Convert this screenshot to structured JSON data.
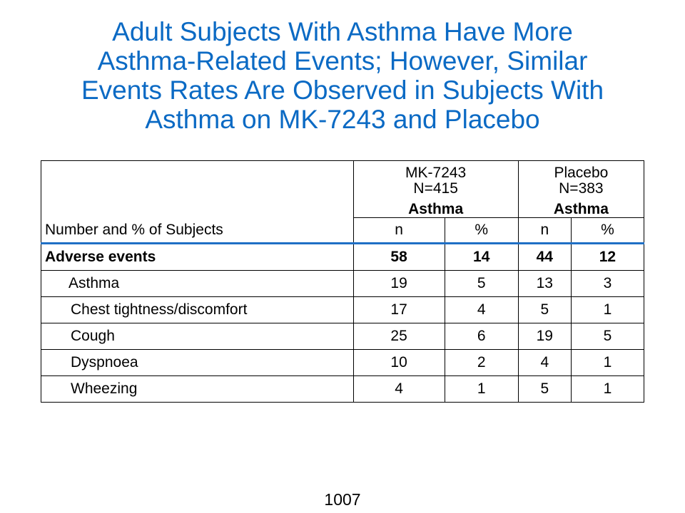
{
  "title_lines": [
    "Adult Subjects With Asthma Have More",
    "Asthma-Related Events; However, Similar",
    "Events Rates Are Observed in Subjects With",
    "Asthma on MK-7243 and Placebo"
  ],
  "table": {
    "row_header": "Number and % of Subjects",
    "groups": [
      {
        "name": "MK-7243",
        "n_label": "N=415",
        "subgroup": "Asthma",
        "col_n": "n",
        "col_pct": "%"
      },
      {
        "name": "Placebo",
        "n_label": "N=383",
        "subgroup": "Asthma",
        "col_n": "n",
        "col_pct": "%"
      }
    ],
    "rows": [
      {
        "label": "Adverse events",
        "values": [
          "58",
          "14",
          "44",
          "12"
        ]
      },
      {
        "label": "Asthma",
        "values": [
          "19",
          "5",
          "13",
          "3"
        ]
      },
      {
        "label": "Chest tightness/discomfort",
        "values": [
          "17",
          "4",
          "5",
          "1"
        ]
      },
      {
        "label": "Cough",
        "values": [
          "25",
          "6",
          "19",
          "5"
        ]
      },
      {
        "label": "Dyspnoea",
        "values": [
          "10",
          "2",
          "4",
          "1"
        ]
      },
      {
        "label": "Wheezing",
        "values": [
          "4",
          "1",
          "5",
          "1"
        ]
      }
    ]
  },
  "page_number": "1007"
}
